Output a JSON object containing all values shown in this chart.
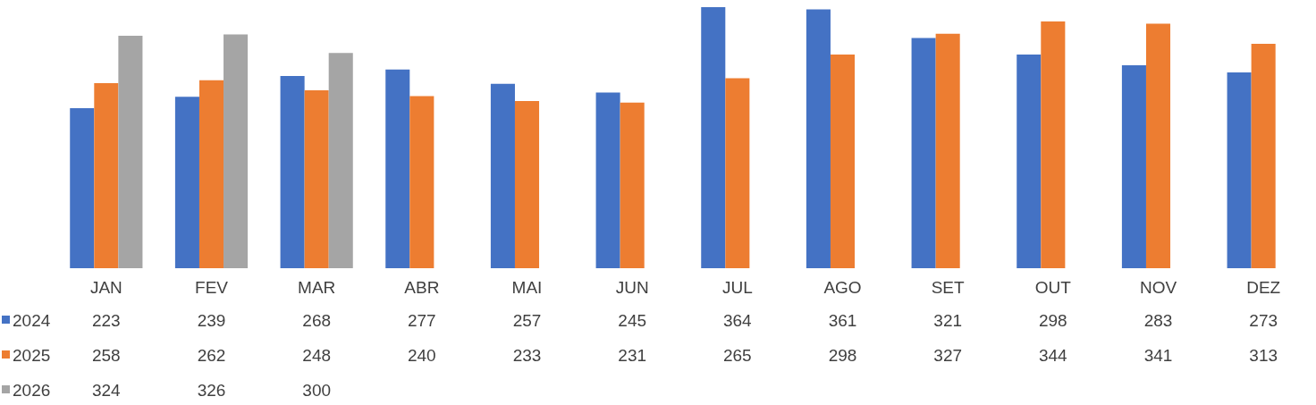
{
  "chart_data": {
    "type": "bar",
    "categories": [
      "JAN",
      "FEV",
      "MAR",
      "ABR",
      "MAI",
      "JUN",
      "JUL",
      "AGO",
      "SET",
      "OUT",
      "NOV",
      "DEZ"
    ],
    "series": [
      {
        "name": "2024",
        "color": "#4472c4",
        "values": [
          223,
          239,
          268,
          277,
          257,
          245,
          364,
          361,
          321,
          298,
          283,
          273
        ]
      },
      {
        "name": "2025",
        "color": "#ed7d31",
        "values": [
          258,
          262,
          248,
          240,
          233,
          231,
          265,
          298,
          327,
          344,
          341,
          313
        ]
      },
      {
        "name": "2026",
        "color": "#a5a5a5",
        "values": [
          324,
          326,
          300,
          null,
          null,
          null,
          null,
          null,
          null,
          null,
          null,
          null
        ]
      }
    ],
    "data_labels": true,
    "legend": "left"
  }
}
